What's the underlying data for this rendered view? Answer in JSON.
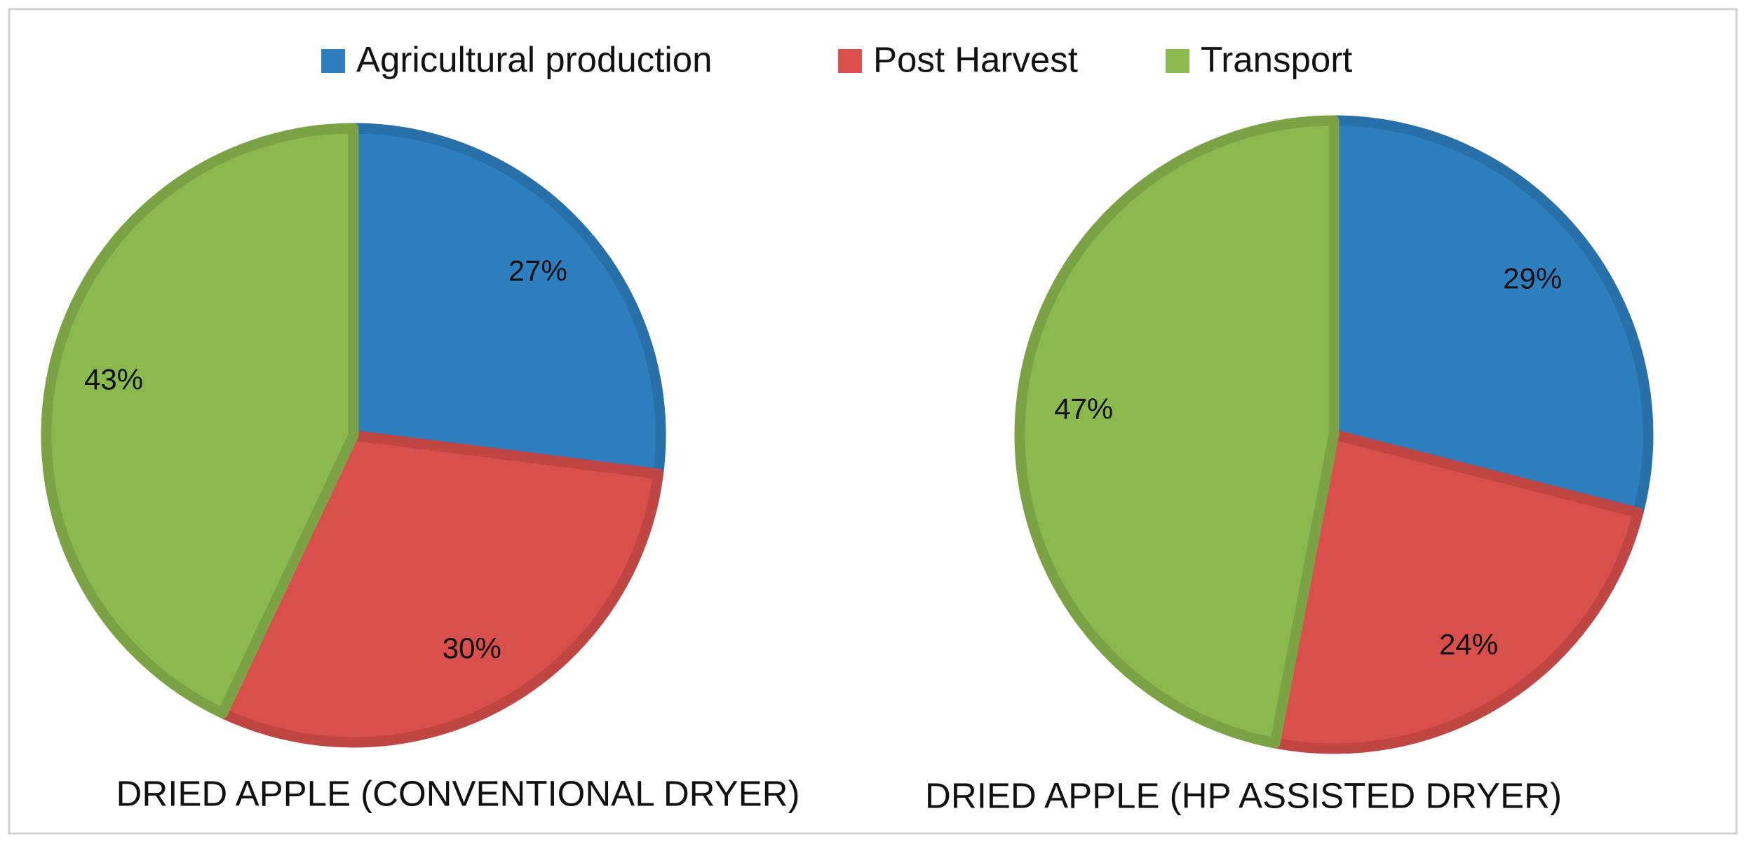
{
  "chart_data": [
    {
      "type": "pie",
      "title": "DRIED APPLE (CONVENTIONAL DRYER)",
      "categories": [
        "Agricultural production",
        "Post Harvest",
        "Transport"
      ],
      "colors": [
        "#2e7fc0",
        "#d94f4c",
        "#8cb94e"
      ],
      "legend": "top",
      "values": [
        27,
        30,
        43
      ],
      "value_labels": [
        "27%",
        "30%",
        "43%"
      ]
    },
    {
      "type": "pie",
      "title": "DRIED APPLE (HP ASSISTED DRYER)",
      "values": [
        29,
        24,
        47
      ],
      "value_labels": [
        "29%",
        "24%",
        "47%"
      ]
    }
  ]
}
